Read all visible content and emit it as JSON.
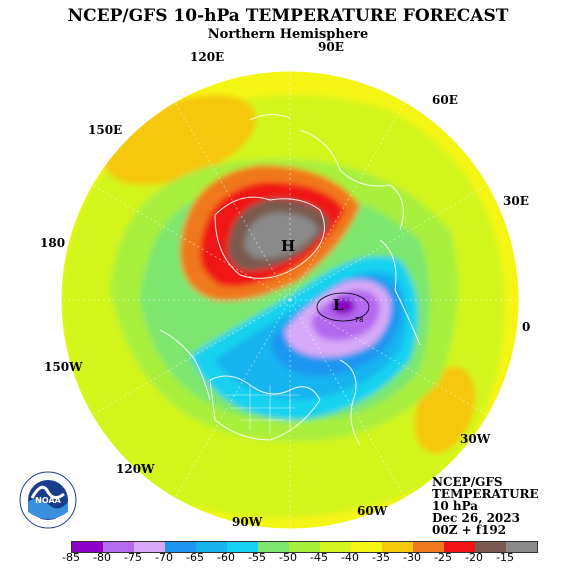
{
  "title": "NCEP/GFS 10-hPa TEMPERATURE FORECAST",
  "subtitle": "Northern Hemisphere",
  "longitude_labels": [
    {
      "text": "90E",
      "pos": "top"
    },
    {
      "text": "120E",
      "pos": "top-left"
    },
    {
      "text": "60E",
      "pos": "top-right"
    },
    {
      "text": "150E",
      "pos": "upper-left"
    },
    {
      "text": "30E",
      "pos": "upper-right"
    },
    {
      "text": "180",
      "pos": "left"
    },
    {
      "text": "0",
      "pos": "right"
    },
    {
      "text": "150W",
      "pos": "lower-left"
    },
    {
      "text": "30W",
      "pos": "lower-right"
    },
    {
      "text": "120W",
      "pos": "bottom-left"
    },
    {
      "text": "60W",
      "pos": "bottom-right"
    },
    {
      "text": "90W",
      "pos": "bottom"
    }
  ],
  "info": {
    "line1": "NCEP/GFS",
    "line2": "TEMPERATURE",
    "line3": "10 hPa",
    "line4": "Dec 26, 2023",
    "line5": "00Z + f192"
  },
  "map": {
    "high_label": "H",
    "low_label": "L",
    "contour_label": "-78"
  },
  "logo": {
    "text": "NOAA",
    "ring_text": "NATIONAL OCEANIC AND ATMOSPHERIC ADMINISTRATION · U.S. DEPARTMENT OF COMMERCE"
  },
  "legend": {
    "ticks": [
      "-85",
      "-80",
      "-75",
      "-70",
      "-65",
      "-60",
      "-55",
      "-50",
      "-45",
      "-40",
      "-35",
      "-30",
      "-25",
      "-20",
      "-15"
    ],
    "colors": [
      "#8e00c8",
      "#b469f0",
      "#d8a8f8",
      "#1e96f0",
      "#18b4f0",
      "#16d2f0",
      "#7de66e",
      "#a8f03c",
      "#d2f51e",
      "#f5f514",
      "#f5c80a",
      "#f0781e",
      "#f01414",
      "#7a5a50",
      "#8a8a8a"
    ]
  }
}
